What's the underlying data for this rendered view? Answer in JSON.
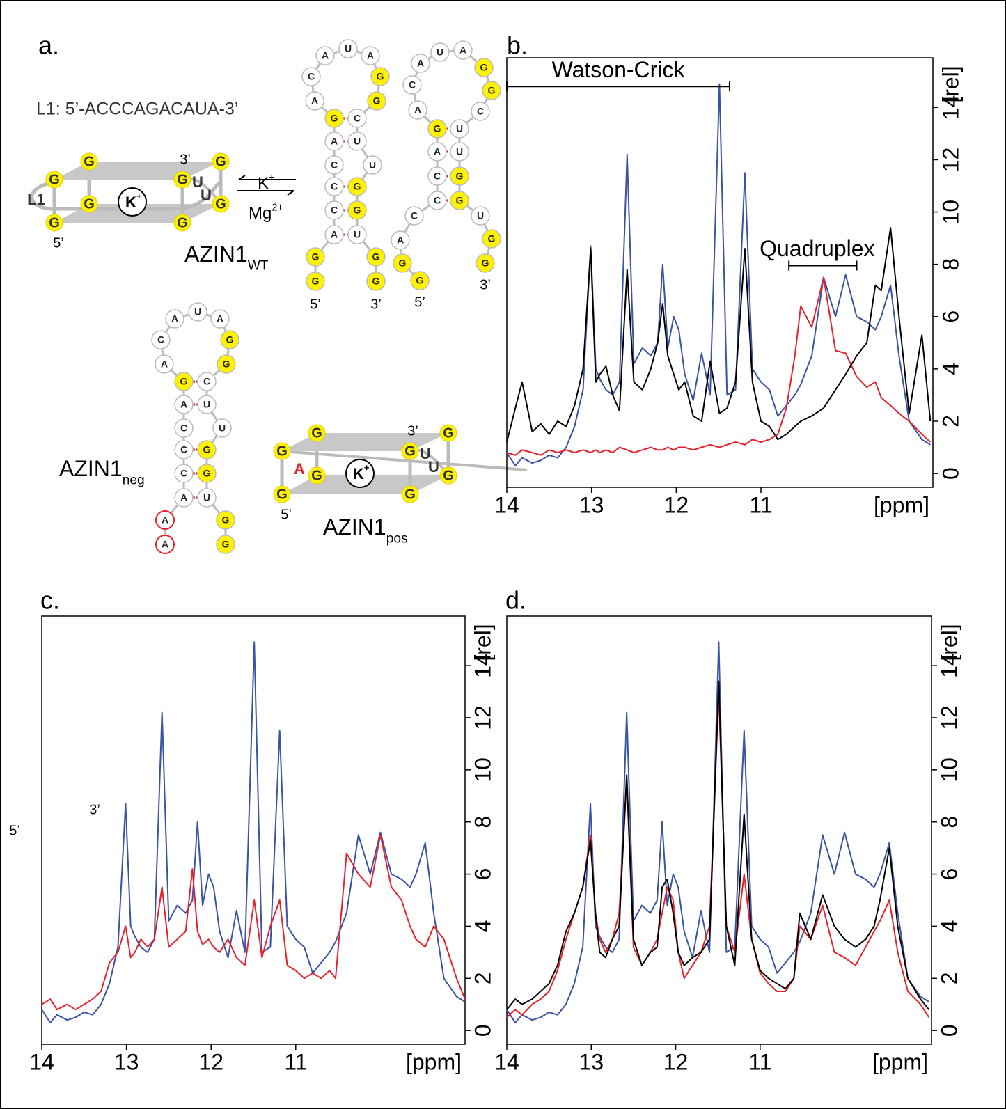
{
  "diagram": {
    "panel": "a.",
    "l1_sequence": "L1: 5’-ACCCAGACAUA-3’",
    "equilibrium": {
      "forward": {
        "base": "K",
        "sup": "+"
      },
      "reverse": {
        "base": "Mg",
        "sup": "2+"
      }
    },
    "quadruplex_wt": {
      "name": {
        "base": "AZIN1",
        "sub": "WT"
      },
      "guanines": [
        "G",
        "G",
        "G",
        "G",
        "G",
        "G",
        "G",
        "G"
      ],
      "loop_label": "L1",
      "three_prime": "3’",
      "five_prime": "5’",
      "uridines": [
        "U",
        "U"
      ],
      "ion": {
        "base": "K",
        "sup": "+"
      }
    },
    "quadruplex_pos": {
      "name": {
        "base": "AZIN1",
        "sub": "pos"
      },
      "guanines": [
        "G",
        "G",
        "G",
        "G",
        "G",
        "G",
        "G",
        "G"
      ],
      "substitution": "A",
      "three_prime": "3’",
      "five_prime": "5’",
      "uridines": [
        "U",
        "U"
      ],
      "ion": {
        "base": "K",
        "sup": "+"
      }
    },
    "hairpins": [
      {
        "sequence": [
          "G",
          "G",
          "A",
          "C",
          "C",
          "C",
          "A",
          "G",
          "A",
          "C",
          "A",
          "U",
          "A",
          "G",
          "G",
          "C",
          "U",
          "U",
          "G",
          "G",
          "U",
          "G",
          "G"
        ],
        "five_prime": "5’",
        "three_prime": "3’"
      },
      {
        "sequence": [
          "G",
          "G",
          "A",
          "C",
          "C",
          "C",
          "A",
          "G",
          "A",
          "C",
          "A",
          "U",
          "A",
          "G",
          "G",
          "C",
          "U",
          "U",
          "G",
          "G",
          "U",
          "G",
          "G"
        ],
        "five_prime": "5’",
        "three_prime": "3’"
      },
      {
        "sequence": [
          "A",
          "A",
          "A",
          "C",
          "C",
          "C",
          "A",
          "G",
          "A",
          "C",
          "A",
          "U",
          "A",
          "G",
          "G",
          "C",
          "U",
          "U",
          "G",
          "G",
          "U",
          "G",
          "G"
        ],
        "five_prime": "5’",
        "three_prime": "3’",
        "name": {
          "base": "AZIN1",
          "sub": "neg"
        }
      }
    ]
  },
  "chart_data": [
    {
      "type": "line",
      "panel": "b.",
      "xlabel": "[ppm]",
      "ylabel": "[rel]",
      "xlim": [
        14,
        8.97
      ],
      "ylim": [
        -0.53,
        15.9
      ],
      "xticks": [
        14,
        13,
        12,
        11
      ],
      "yticks": [
        0,
        2,
        4,
        6,
        8,
        10,
        12,
        14
      ],
      "x": [
        14.0,
        13.9,
        13.82,
        13.7,
        13.6,
        13.5,
        13.4,
        13.3,
        13.2,
        13.1,
        13.01,
        12.95,
        12.9,
        12.83,
        12.75,
        12.67,
        12.58,
        12.5,
        12.4,
        12.3,
        12.22,
        12.16,
        12.1,
        12.03,
        11.97,
        11.9,
        11.8,
        11.7,
        11.6,
        11.49,
        11.4,
        11.3,
        11.19,
        11.1,
        11.0,
        10.9,
        10.8,
        10.7,
        10.6,
        10.53,
        10.4,
        10.26,
        10.12,
        10.0,
        9.87,
        9.75,
        9.65,
        9.58,
        9.47,
        9.37,
        9.25,
        9.1,
        9.0
      ],
      "series": [
        {
          "color": "#3a53a4",
          "values": [
            0.8,
            0.3,
            0.6,
            0.4,
            0.5,
            0.7,
            0.6,
            1.0,
            1.8,
            3.2,
            8.7,
            4.0,
            3.6,
            3.2,
            3.0,
            3.5,
            12.2,
            4.2,
            4.8,
            4.5,
            5.0,
            8.0,
            4.8,
            6.0,
            5.5,
            3.8,
            2.8,
            4.6,
            3.0,
            14.9,
            3.0,
            3.2,
            11.5,
            4.0,
            3.5,
            3.2,
            2.2,
            2.6,
            3.0,
            3.4,
            4.5,
            7.5,
            6.0,
            7.6,
            6.0,
            5.8,
            5.5,
            6.0,
            7.2,
            4.5,
            2.0,
            1.3,
            1.1
          ]
        },
        {
          "color": "#000000",
          "values": [
            1.2,
            2.5,
            3.5,
            1.6,
            1.9,
            1.5,
            2.0,
            1.8,
            2.6,
            4.0,
            8.6,
            3.5,
            3.8,
            4.1,
            3.0,
            2.4,
            7.8,
            3.5,
            3.2,
            4.0,
            5.0,
            6.5,
            4.5,
            3.8,
            3.2,
            3.5,
            2.2,
            2.0,
            4.3,
            2.3,
            2.5,
            3.5,
            8.6,
            3.5,
            2.0,
            1.8,
            1.3,
            1.5,
            1.8,
            2.0,
            2.2,
            2.5,
            3.2,
            3.8,
            4.5,
            5.0,
            7.2,
            7.0,
            9.4,
            6.0,
            2.3,
            5.3,
            2.0
          ]
        },
        {
          "color": "#e8202a",
          "values": [
            0.8,
            0.7,
            0.9,
            0.8,
            0.7,
            0.9,
            0.8,
            0.9,
            0.8,
            0.9,
            0.8,
            0.9,
            0.8,
            0.9,
            0.8,
            1.0,
            0.9,
            0.8,
            0.9,
            1.0,
            0.9,
            0.9,
            1.0,
            0.9,
            1.0,
            1.0,
            0.9,
            1.0,
            1.1,
            1.0,
            1.1,
            1.2,
            1.1,
            1.3,
            1.2,
            1.3,
            1.5,
            2.5,
            4.5,
            6.4,
            5.6,
            7.5,
            4.7,
            4.6,
            3.7,
            3.3,
            3.5,
            2.9,
            2.6,
            2.3,
            2.0,
            1.5,
            1.2
          ]
        }
      ],
      "annotations": [
        {
          "text": "Watson-Crick",
          "xrange": [
            14.0,
            11.37
          ],
          "y": 14.8
        },
        {
          "text": "Quadruplex",
          "xrange": [
            10.67,
            9.87
          ],
          "y": 7.95
        }
      ]
    },
    {
      "type": "line",
      "panel": "c.",
      "xlabel": "[ppm]",
      "ylabel": "[rel]",
      "xlim": [
        14,
        9.0
      ],
      "ylim": [
        -0.53,
        15.9
      ],
      "xticks": [
        14,
        13,
        12,
        11
      ],
      "yticks": [
        0,
        2,
        4,
        6,
        8,
        10,
        12,
        14
      ],
      "x": [
        14.0,
        13.9,
        13.82,
        13.7,
        13.6,
        13.5,
        13.4,
        13.3,
        13.2,
        13.1,
        13.01,
        12.95,
        12.9,
        12.83,
        12.75,
        12.67,
        12.58,
        12.5,
        12.4,
        12.3,
        12.22,
        12.16,
        12.1,
        12.03,
        11.97,
        11.9,
        11.8,
        11.7,
        11.6,
        11.49,
        11.4,
        11.3,
        11.19,
        11.1,
        11.0,
        10.9,
        10.8,
        10.7,
        10.6,
        10.53,
        10.4,
        10.26,
        10.12,
        10.0,
        9.87,
        9.75,
        9.65,
        9.58,
        9.47,
        9.37,
        9.25,
        9.1,
        9.0
      ],
      "series": [
        {
          "color": "#3a53a4",
          "values": [
            0.8,
            0.3,
            0.6,
            0.4,
            0.5,
            0.7,
            0.6,
            1.0,
            1.8,
            3.2,
            8.7,
            4.0,
            3.6,
            3.2,
            3.0,
            3.5,
            12.2,
            4.2,
            4.8,
            4.5,
            5.0,
            8.0,
            4.8,
            6.0,
            5.5,
            3.8,
            2.8,
            4.6,
            3.0,
            14.9,
            3.0,
            3.2,
            11.5,
            4.0,
            3.5,
            3.2,
            2.2,
            2.6,
            3.0,
            3.4,
            4.5,
            7.5,
            6.0,
            7.6,
            6.0,
            5.8,
            5.5,
            6.0,
            7.2,
            4.5,
            2.0,
            1.3,
            1.1
          ]
        },
        {
          "color": "#e8202a",
          "values": [
            1.0,
            1.2,
            0.8,
            1.0,
            0.8,
            1.0,
            1.2,
            1.5,
            2.6,
            3.0,
            4.0,
            2.8,
            3.0,
            3.5,
            3.2,
            3.5,
            5.5,
            3.2,
            3.5,
            3.8,
            6.2,
            3.8,
            3.3,
            3.5,
            3.2,
            3.0,
            3.5,
            2.8,
            2.5,
            5.0,
            2.8,
            4.0,
            5.0,
            2.5,
            2.3,
            2.0,
            2.2,
            2.0,
            2.3,
            2.0,
            6.8,
            6.0,
            5.5,
            7.5,
            5.5,
            5.0,
            4.0,
            3.5,
            3.2,
            4.0,
            3.5,
            2.0,
            1.2
          ]
        }
      ]
    },
    {
      "type": "line",
      "panel": "d.",
      "xlabel": "[ppm]",
      "ylabel": "[rel]",
      "xlim": [
        14,
        8.97
      ],
      "ylim": [
        -0.53,
        15.9
      ],
      "xticks": [
        14,
        13,
        12,
        11
      ],
      "yticks": [
        0,
        2,
        4,
        6,
        8,
        10,
        12,
        14
      ],
      "x": [
        14.0,
        13.9,
        13.82,
        13.7,
        13.6,
        13.5,
        13.4,
        13.3,
        13.2,
        13.1,
        13.01,
        12.95,
        12.9,
        12.83,
        12.75,
        12.67,
        12.58,
        12.5,
        12.4,
        12.3,
        12.22,
        12.16,
        12.1,
        12.03,
        11.97,
        11.9,
        11.8,
        11.7,
        11.6,
        11.49,
        11.4,
        11.3,
        11.19,
        11.1,
        11.0,
        10.9,
        10.8,
        10.7,
        10.6,
        10.53,
        10.4,
        10.26,
        10.12,
        10.0,
        9.87,
        9.75,
        9.65,
        9.58,
        9.47,
        9.37,
        9.25,
        9.1,
        9.0
      ],
      "series": [
        {
          "color": "#3a53a4",
          "values": [
            0.8,
            0.3,
            0.6,
            0.4,
            0.5,
            0.7,
            0.6,
            1.0,
            1.8,
            3.2,
            8.7,
            4.0,
            3.6,
            3.2,
            3.0,
            3.5,
            12.2,
            4.2,
            4.8,
            4.5,
            5.0,
            8.0,
            4.8,
            6.0,
            5.5,
            3.8,
            2.8,
            4.6,
            3.0,
            14.9,
            3.0,
            3.2,
            11.5,
            4.0,
            3.5,
            3.2,
            2.2,
            2.6,
            3.0,
            3.4,
            4.5,
            7.5,
            6.0,
            7.6,
            6.0,
            5.8,
            5.5,
            6.0,
            7.2,
            4.5,
            2.0,
            1.3,
            1.1
          ]
        },
        {
          "color": "#e8202a",
          "values": [
            0.5,
            0.8,
            0.6,
            1.0,
            1.2,
            1.5,
            2.3,
            3.5,
            4.5,
            5.5,
            7.5,
            4.5,
            3.5,
            3.0,
            3.5,
            4.5,
            9.6,
            3.2,
            2.5,
            3.0,
            3.5,
            4.5,
            5.5,
            5.0,
            3.0,
            2.0,
            2.5,
            3.0,
            4.0,
            13.0,
            4.0,
            3.0,
            6.0,
            3.5,
            2.2,
            1.8,
            1.5,
            1.5,
            2.0,
            4.0,
            3.5,
            4.8,
            3.0,
            2.8,
            2.5,
            3.2,
            3.8,
            4.2,
            5.0,
            3.0,
            1.5,
            1.0,
            0.5
          ]
        },
        {
          "color": "#000000",
          "values": [
            0.8,
            1.2,
            1.0,
            1.2,
            1.5,
            1.8,
            2.5,
            3.8,
            4.5,
            5.5,
            7.3,
            4.5,
            3.0,
            2.8,
            3.5,
            4.0,
            9.8,
            3.5,
            2.5,
            3.0,
            3.2,
            5.5,
            5.8,
            4.5,
            3.0,
            2.5,
            2.8,
            3.0,
            3.5,
            13.4,
            4.0,
            2.5,
            8.3,
            3.5,
            2.3,
            2.0,
            1.8,
            1.6,
            2.0,
            4.5,
            3.5,
            5.2,
            4.0,
            3.5,
            3.2,
            3.5,
            4.0,
            5.0,
            7.0,
            4.0,
            2.0,
            1.2,
            0.8
          ]
        }
      ]
    }
  ]
}
